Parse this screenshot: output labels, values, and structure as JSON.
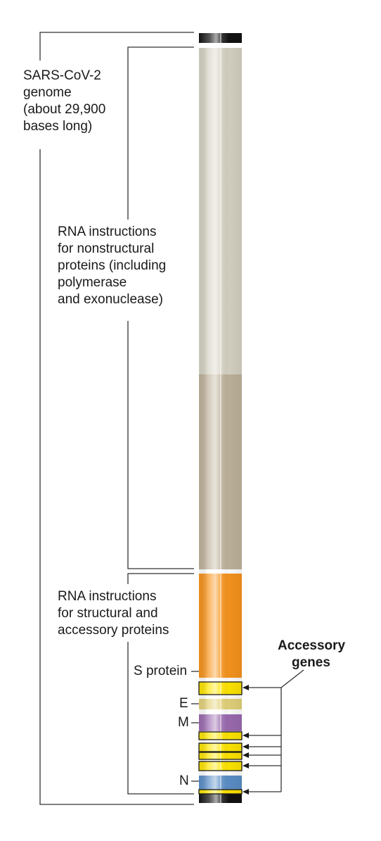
{
  "diagram": {
    "genome_label": [
      "SARS-CoV-2",
      "genome",
      "(about 29,900",
      "bases long)"
    ],
    "nonstructural_label": [
      "RNA instructions",
      "for nonstructural",
      "proteins (including",
      "polymerase",
      "and exonuclease)"
    ],
    "structural_label": [
      "RNA instructions",
      "for structural and",
      "accessory proteins"
    ],
    "gene_labels": {
      "s": "S protein",
      "e": "E",
      "m": "M",
      "n": "N"
    },
    "accessory_label": [
      "Accessory",
      "genes"
    ],
    "colors": {
      "nonstructural_light": "#d6d3c4",
      "nonstructural_dark": "#bfb39c",
      "structural": "#f7941d",
      "accessory": "#ffe600",
      "envelope": "#e3d27a",
      "membrane": "#9b6bb0",
      "nucleocapsid": "#5b8fc7",
      "ends": "#1a1a1a",
      "lines": "#333333"
    }
  }
}
